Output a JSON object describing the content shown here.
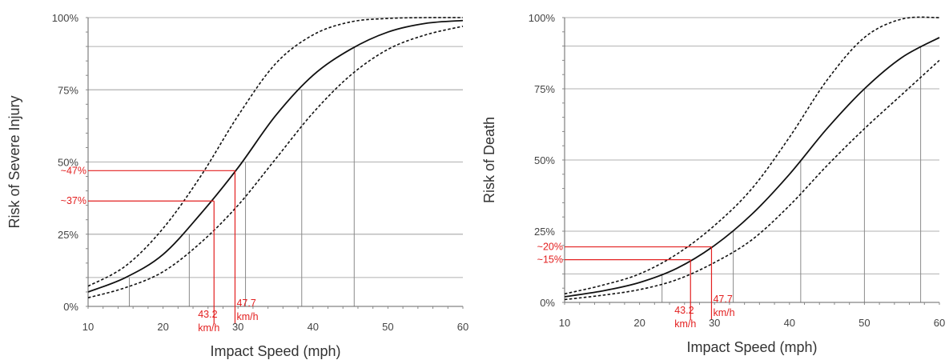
{
  "chart_data": [
    {
      "type": "line",
      "xlabel": "Impact Speed (mph)",
      "ylabel": "Risk of Severe Injury",
      "xlim": [
        10,
        60
      ],
      "ylim": [
        0,
        100
      ],
      "xticks": [
        "10",
        "20",
        "30",
        "40",
        "50",
        "60"
      ],
      "yticks": [
        "0%",
        "25%",
        "50%",
        "75%",
        "100%"
      ],
      "grid": true,
      "x": [
        10,
        15,
        20,
        25,
        30,
        35,
        40,
        45,
        50,
        55,
        60
      ],
      "series": [
        {
          "style": "dashed",
          "values": [
            7,
            14,
            27,
            45,
            66,
            84,
            94,
            98.5,
            99.7,
            100,
            100
          ]
        },
        {
          "style": "solid",
          "values": [
            5,
            10,
            18,
            32,
            48,
            66,
            80,
            89,
            95,
            98,
            99
          ]
        },
        {
          "style": "dashed",
          "values": [
            3,
            6.5,
            12,
            22,
            35,
            51,
            67,
            80,
            89,
            94,
            97
          ]
        }
      ],
      "reference_lines": [
        {
          "speed": 15.5,
          "risk": 10
        },
        {
          "speed": 23.5,
          "risk": 25
        },
        {
          "speed": 31,
          "risk": 50
        },
        {
          "speed": 38.5,
          "risk": 75
        },
        {
          "speed": 45.5,
          "risk": 90
        }
      ],
      "annotations": [
        {
          "speed_label": "43.2\nkm/h",
          "risk_label": "~37%",
          "speed": 26.8,
          "risk": 36.5
        },
        {
          "speed_label": "47.7\nkm/h",
          "risk_label": "~47%",
          "speed": 29.6,
          "risk": 47
        }
      ],
      "colors": {
        "annotation": "#e32020",
        "curves": "#111111",
        "grid": "#b0b0b0"
      }
    },
    {
      "type": "line",
      "xlabel": "Impact Speed (mph)",
      "ylabel": "Risk of Death",
      "xlim": [
        10,
        60
      ],
      "ylim": [
        0,
        100
      ],
      "xticks": [
        "10",
        "20",
        "30",
        "40",
        "50",
        "60"
      ],
      "yticks": [
        "0%",
        "25%",
        "50%",
        "75%",
        "100%"
      ],
      "grid": true,
      "x": [
        10,
        15,
        20,
        25,
        30,
        35,
        40,
        45,
        50,
        55,
        60
      ],
      "series": [
        {
          "style": "dashed",
          "values": [
            3,
            6,
            10,
            17,
            27,
            40,
            58,
            78,
            93,
            99.5,
            100
          ]
        },
        {
          "style": "solid",
          "values": [
            2,
            4,
            7,
            12,
            20,
            31,
            45,
            61,
            75,
            86,
            93
          ]
        },
        {
          "style": "dashed",
          "values": [
            1,
            2.5,
            4.5,
            8,
            14,
            22,
            34,
            48,
            61,
            73,
            85
          ]
        }
      ],
      "reference_lines": [
        {
          "speed": 23,
          "risk": 10
        },
        {
          "speed": 32.5,
          "risk": 25
        },
        {
          "speed": 41.5,
          "risk": 50
        },
        {
          "speed": 50,
          "risk": 75
        },
        {
          "speed": 57.5,
          "risk": 90
        }
      ],
      "annotations": [
        {
          "speed_label": "43.2\nkm/h",
          "risk_label": "~15%",
          "speed": 26.8,
          "risk": 15
        },
        {
          "speed_label": "47.7\nkm/h",
          "risk_label": "~20%",
          "speed": 29.6,
          "risk": 19.5
        }
      ],
      "colors": {
        "annotation": "#e32020",
        "curves": "#111111",
        "grid": "#b0b0b0"
      }
    }
  ]
}
